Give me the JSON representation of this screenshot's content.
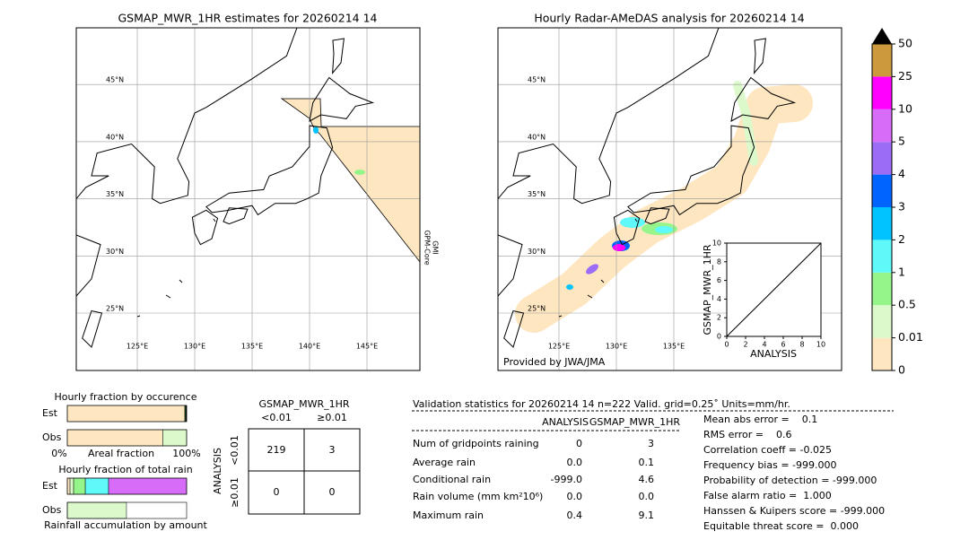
{
  "left_map": {
    "title": "GSMAP_MWR_1HR estimates for 20260214 14",
    "lat_lines": [
      {
        "value": 45,
        "label": "45°N"
      },
      {
        "value": 40,
        "label": "40°N"
      },
      {
        "value": 35,
        "label": "35°N"
      },
      {
        "value": 30,
        "label": "30°N"
      },
      {
        "value": 25,
        "label": "25°N"
      }
    ],
    "lon_lines": [
      {
        "value": 125,
        "label": "125°E"
      },
      {
        "value": 130,
        "label": "130°E"
      },
      {
        "value": 135,
        "label": "135°E"
      },
      {
        "value": 140,
        "label": "140°E"
      },
      {
        "value": 145,
        "label": "145°E"
      }
    ],
    "sensor": [
      "GPM-Core",
      "GMI"
    ]
  },
  "right_map": {
    "title": "Hourly Radar-AMeDAS analysis for 20260214 14",
    "lat_lines": [
      {
        "value": 45,
        "label": "45°N"
      },
      {
        "value": 40,
        "label": "40°N"
      },
      {
        "value": 35,
        "label": "35°N"
      },
      {
        "value": 30,
        "label": "30°N"
      },
      {
        "value": 25,
        "label": "25°N"
      }
    ],
    "lon_lines": [
      {
        "value": 125,
        "label": "125°E"
      },
      {
        "value": 130,
        "label": "130°E"
      },
      {
        "value": 135,
        "label": "135°E"
      }
    ],
    "credit": "Provided by JWA/JMA"
  },
  "scatter": {
    "xlabel": "ANALYSIS",
    "ylabel": "GSMAP_MWR_1HR",
    "xlim": [
      0,
      10
    ],
    "ylim": [
      0,
      10
    ],
    "xticks": [
      0,
      2,
      4,
      6,
      8,
      10
    ],
    "yticks": [
      0,
      2,
      4,
      6,
      8,
      10
    ]
  },
  "colorbar": {
    "levels": [
      0,
      0.01,
      0.5,
      1,
      2,
      3,
      4,
      5,
      10,
      25,
      50
    ],
    "colors": [
      "#fde6c0",
      "#dcf9cc",
      "#96f58a",
      "#5ff9f9",
      "#00c3ff",
      "#0064ff",
      "#9b6cf5",
      "#d66cf8",
      "#ff00ff",
      "#cc9a3c"
    ],
    "extend_color": "#000000"
  },
  "occurrence": {
    "title": "Hourly fraction by occurence",
    "rows": [
      {
        "name": "Est",
        "segments": [
          {
            "value": 98.5,
            "color": "#fde6c0"
          },
          {
            "value": 0.8,
            "color": "#2e8b2e"
          },
          {
            "value": 0.7,
            "color": "#000000"
          }
        ]
      },
      {
        "name": "Obs",
        "segments": [
          {
            "value": 80,
            "color": "#fde6c0"
          },
          {
            "value": 20,
            "color": "#dcf9cc"
          }
        ]
      }
    ],
    "axis": [
      "0%",
      "Areal fraction",
      "100%"
    ]
  },
  "total_rain": {
    "title": "Hourly fraction of total rain",
    "rows": [
      {
        "name": "Est",
        "segments": [
          {
            "value": 2.3,
            "color": "#fde6c0"
          },
          {
            "value": 3,
            "color": "#dcf9cc"
          },
          {
            "value": 9.8,
            "color": "#96f58a"
          },
          {
            "value": 19.5,
            "color": "#5ff9f9"
          },
          {
            "value": 65.4,
            "color": "#d66cf8"
          }
        ]
      },
      {
        "name": "Obs",
        "segments": [
          {
            "value": 49.6,
            "color": "#dcf9cc"
          }
        ]
      }
    ],
    "caption": "Rainfall accumulation by amount"
  },
  "contingency": {
    "col_title": "GSMAP_MWR_1HR",
    "col_labels": [
      "<0.01",
      "≥0.01"
    ],
    "row_title": "ANALYSIS",
    "row_labels": [
      "<0.01",
      "≥0.01"
    ],
    "cells": [
      [
        "219",
        "3"
      ],
      [
        "0",
        "0"
      ]
    ]
  },
  "stats": {
    "title": "Validation statistics for 20260214 14  n=222 Valid. grid=0.25˚ Units=mm/hr.",
    "columns": [
      "ANALYSIS",
      "GSMAP_MWR_1HR"
    ],
    "rows": [
      {
        "label": "Num of gridpoints raining",
        "analysis": "0",
        "gsmap": "3"
      },
      {
        "label": "Average rain",
        "analysis": "0.0",
        "gsmap": "0.1"
      },
      {
        "label": "Conditional rain",
        "analysis": "-999.0",
        "gsmap": "4.6"
      },
      {
        "label": "Rain volume (mm km²10⁶)",
        "analysis": "0.0",
        "gsmap": "0.0"
      },
      {
        "label": "Maximum rain",
        "analysis": "0.4",
        "gsmap": "9.1"
      }
    ],
    "scores": [
      "Mean abs error =    0.1",
      "RMS error =    0.6",
      "Correlation coeff = -0.025",
      "Frequency bias = -999.000",
      "Probability of detection = -999.000",
      "False alarm ratio =  1.000",
      "Hanssen & Kuipers score = -999.000",
      "Equitable threat score =  0.000"
    ]
  }
}
